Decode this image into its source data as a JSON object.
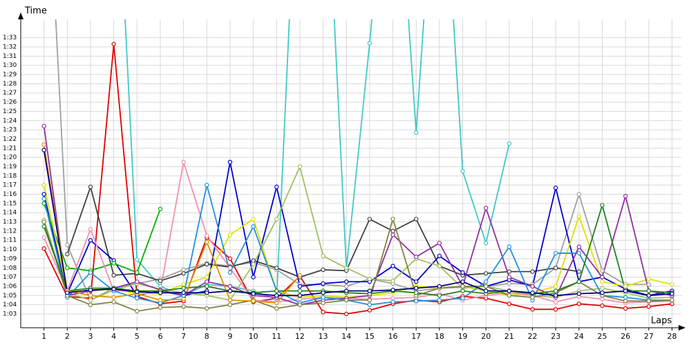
{
  "chart_data": {
    "type": "line",
    "title": "Time",
    "x_label": "Laps",
    "x": [
      1,
      2,
      3,
      4,
      5,
      6,
      7,
      8,
      9,
      10,
      11,
      12,
      13,
      14,
      15,
      16,
      17,
      18,
      19,
      20,
      21,
      22,
      23,
      24,
      25,
      26,
      27,
      28
    ],
    "xlim": [
      0,
      28.4
    ],
    "xticks": [
      1,
      2,
      3,
      4,
      5,
      6,
      7,
      8,
      9,
      10,
      11,
      12,
      13,
      14,
      15,
      16,
      17,
      18,
      19,
      20,
      21,
      22,
      23,
      24,
      25,
      26,
      27,
      28
    ],
    "ylim": [
      61.5,
      95
    ],
    "yticks": [
      {
        "value": 63,
        "label": "1:03"
      },
      {
        "value": 64,
        "label": "1:04"
      },
      {
        "value": 65,
        "label": "1:05"
      },
      {
        "value": 66,
        "label": "1:06"
      },
      {
        "value": 67,
        "label": "1:07"
      },
      {
        "value": 68,
        "label": "1:08"
      },
      {
        "value": 69,
        "label": "1:09"
      },
      {
        "value": 70,
        "label": "1:10"
      },
      {
        "value": 71,
        "label": "1:11"
      },
      {
        "value": 72,
        "label": "1:12"
      },
      {
        "value": 73,
        "label": "1:13"
      },
      {
        "value": 74,
        "label": "1:14"
      },
      {
        "value": 75,
        "label": "1:15"
      },
      {
        "value": 76,
        "label": "1:16"
      },
      {
        "value": 77,
        "label": "1:17"
      },
      {
        "value": 78,
        "label": "1:18"
      },
      {
        "value": 79,
        "label": "1:19"
      },
      {
        "value": 80,
        "label": "1:20"
      },
      {
        "value": 81,
        "label": "1:21"
      },
      {
        "value": 82,
        "label": "1:22"
      },
      {
        "value": 83,
        "label": "1:23"
      },
      {
        "value": 84,
        "label": "1:24"
      },
      {
        "value": 85,
        "label": "1:25"
      },
      {
        "value": 86,
        "label": "1:26"
      },
      {
        "value": 87,
        "label": "1:27"
      },
      {
        "value": 88,
        "label": "1:28"
      },
      {
        "value": 89,
        "label": "1:29"
      },
      {
        "value": 90,
        "label": "1:30"
      },
      {
        "value": 91,
        "label": "1:31"
      },
      {
        "value": 92,
        "label": "1:32"
      },
      {
        "value": 93,
        "label": "1:33"
      }
    ],
    "grid": true,
    "series": [
      {
        "color": "#e00000",
        "values": [
          70.1,
          64.9,
          64.7,
          92.3,
          64.9,
          64.1,
          64.4,
          71.3,
          69.0,
          64.3,
          64.7,
          67.1,
          63.2,
          63.0,
          63.4,
          64.1,
          64.5,
          64.3,
          64.9,
          64.7,
          64.1,
          63.5,
          63.5,
          64.1,
          63.9,
          63.6,
          63.8,
          64.1
        ]
      },
      {
        "color": "#40c8c8",
        "values": [
          null,
          null,
          null,
          120,
          68.9,
          66.0,
          65.0,
          66.2,
          66.0,
          65.5,
          64.6,
          120,
          120,
          67.9,
          92.4,
          120,
          82.7,
          120,
          78.5,
          70.7,
          81.5,
          null,
          null,
          null,
          null,
          null,
          null,
          null
        ]
      },
      {
        "color": "#a0a0a0",
        "values": [
          120,
          70.5,
          64.5,
          65.8,
          66.3,
          66.8,
          67.8,
          68.5,
          68.2,
          68.6,
          67.8,
          66.2,
          66.2,
          66.0,
          66.8,
          66.3,
          65.5,
          65.8,
          65.9,
          66.0,
          66.3,
          66.2,
          68.0,
          76.0,
          67.7,
          66.2,
          66.2,
          null
        ]
      },
      {
        "color": "#404040",
        "values": [
          null,
          69.5,
          76.8,
          67.2,
          67.4,
          66.6,
          67.4,
          68.4,
          68.1,
          68.8,
          68.0,
          67.0,
          67.8,
          67.7,
          73.3,
          72.0,
          73.3,
          68.2,
          67.2,
          67.4,
          67.6,
          67.6,
          68.0,
          67.6,
          null,
          null,
          null,
          null
        ]
      },
      {
        "color": "#0000d0",
        "values": [
          76.0,
          65.2,
          71.0,
          68.8,
          65.0,
          65.5,
          65.0,
          65.5,
          79.5,
          67.0,
          76.8,
          66.0,
          66.3,
          66.5,
          66.5,
          68.2,
          66.5,
          69.3,
          67.5,
          66.0,
          66.7,
          66.0,
          76.7,
          66.5,
          67.0,
          65.7,
          65.0,
          65.5
        ]
      },
      {
        "color": "#00b000",
        "values": [
          75.0,
          68.0,
          67.7,
          68.5,
          67.5,
          74.4,
          null,
          null,
          null,
          null,
          null,
          null,
          null,
          null,
          null,
          null,
          null,
          null,
          null,
          null,
          null,
          null,
          null,
          null,
          null,
          null,
          null,
          null
        ]
      },
      {
        "color": "#e0e000",
        "values": [
          77.0,
          65.5,
          65.5,
          65.7,
          65.2,
          65.2,
          66.2,
          67.0,
          71.6,
          73.3,
          65.5,
          64.8,
          65.0,
          64.8,
          65.0,
          65.3,
          66.0,
          65.8,
          66.0,
          65.5,
          65.0,
          65.3,
          66.0,
          73.6,
          66.5,
          66.0,
          66.8,
          66.2
        ]
      },
      {
        "color": "#a0c060",
        "values": [
          73.2,
          65.3,
          64.5,
          65.6,
          66.3,
          65.7,
          65.3,
          65.0,
          64.5,
          68.4,
          73.3,
          79.0,
          69.3,
          68.0,
          66.8,
          66.6,
          69.0,
          68.2,
          65.8,
          66.0,
          65.5,
          65.0,
          64.8,
          65.5,
          65.8,
          65.3,
          64.7,
          64.8
        ]
      },
      {
        "color": "#f090b0",
        "values": [
          71.3,
          65.5,
          72.2,
          65.5,
          65.5,
          65.5,
          79.5,
          71.5,
          68.0,
          64.5,
          64.3,
          64.6,
          64.8,
          64.7,
          64.6,
          64.7,
          64.8,
          65.2,
          64.5,
          65.0,
          65.3,
          65.0,
          64.3,
          64.9,
          64.6,
          64.2,
          64.3,
          64.4
        ]
      },
      {
        "color": "#9030a0",
        "values": [
          83.4,
          65.0,
          65.5,
          65.8,
          66.5,
          65.6,
          65.0,
          66.5,
          66.0,
          65.0,
          64.8,
          64.0,
          64.5,
          64.7,
          65.0,
          71.6,
          69.2,
          70.7,
          66.0,
          74.5,
          67.0,
          66.0,
          64.8,
          70.3,
          67.0,
          75.8,
          65.5,
          65.0
        ]
      },
      {
        "color": "#2090e0",
        "values": [
          75.5,
          64.8,
          67.5,
          65.5,
          64.7,
          64.2,
          65.0,
          77.0,
          67.5,
          72.5,
          65.5,
          64.2,
          64.8,
          64.5,
          64.0,
          64.3,
          64.4,
          64.5,
          64.7,
          66.5,
          70.3,
          64.5,
          69.6,
          69.6,
          65.0,
          64.8,
          64.5,
          64.5
        ]
      },
      {
        "color": "#808040",
        "values": [
          73.0,
          65.0,
          64.0,
          64.3,
          63.3,
          63.7,
          63.8,
          63.6,
          64.0,
          64.5,
          63.6,
          64.0,
          64.2,
          64.5,
          64.5,
          73.3,
          65.0,
          65.8,
          66.0,
          66.0,
          65.0,
          64.8,
          65.3,
          66.5,
          65.0,
          64.4,
          64.4,
          64.5
        ]
      },
      {
        "color": "#208020",
        "values": [
          72.5,
          65.5,
          65.8,
          65.8,
          65.5,
          65.5,
          65.8,
          66.0,
          65.5,
          65.3,
          65.5,
          65.5,
          65.5,
          65.3,
          65.2,
          65.5,
          65.3,
          65.0,
          65.5,
          65.2,
          65.5,
          65.2,
          65.5,
          66.5,
          74.8,
          65.5,
          65.5,
          65.3
        ]
      },
      {
        "color": "#e09000",
        "values": [
          81.4,
          65.5,
          65.0,
          64.8,
          65.2,
          64.5,
          64.6,
          70.8,
          64.5,
          64.4,
          64.2,
          67.2,
          null,
          null,
          null,
          null,
          null,
          null,
          null,
          null,
          null,
          null,
          null,
          null,
          null,
          null,
          null,
          null
        ]
      },
      {
        "color": "#000080",
        "values": [
          80.8,
          65.3,
          65.6,
          65.7,
          65.4,
          65.3,
          65.3,
          65.3,
          65.5,
          65.2,
          65.0,
          65.0,
          65.3,
          65.5,
          65.5,
          65.6,
          65.8,
          66.0,
          66.5,
          65.5,
          65.5,
          65.3,
          65.0,
          65.2,
          65.3,
          65.5,
          65.0,
          65.2
        ]
      }
    ]
  }
}
